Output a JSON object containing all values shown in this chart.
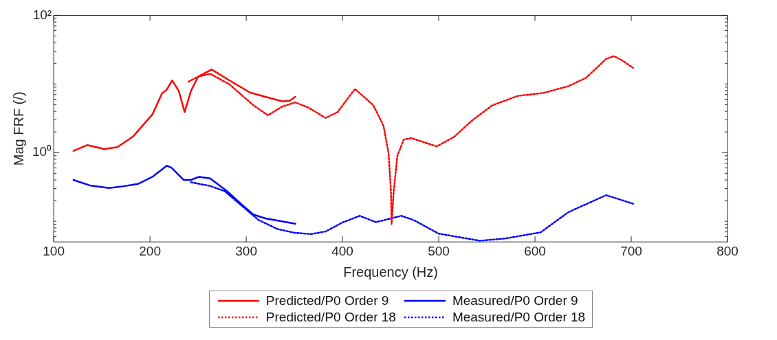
{
  "chart_data": {
    "type": "line",
    "xlabel": "Frequency (Hz)",
    "ylabel": "Mag FRF (/)",
    "log": "y",
    "grid": false,
    "legend": "bottom",
    "marker": "none",
    "xlim": [
      100,
      800
    ],
    "xticks": [
      100,
      200,
      300,
      400,
      500,
      600,
      700,
      800
    ],
    "ylim": [
      0.05,
      100
    ],
    "yticks": [
      {
        "value": 0.06,
        "label": null
      },
      {
        "value": 0.07,
        "label": null
      },
      {
        "value": 0.08,
        "label": null
      },
      {
        "value": 0.09,
        "label": null
      },
      {
        "value": 0.1,
        "label": null
      },
      {
        "value": 0.2,
        "label": null
      },
      {
        "value": 0.3,
        "label": null
      },
      {
        "value": 0.4,
        "label": null
      },
      {
        "value": 0.5,
        "label": null
      },
      {
        "value": 0.6,
        "label": null
      },
      {
        "value": 0.7,
        "label": null
      },
      {
        "value": 0.8,
        "label": null
      },
      {
        "value": 0.9,
        "label": null
      },
      {
        "value": 1,
        "label": "10⁰"
      },
      {
        "value": 2,
        "label": null
      },
      {
        "value": 3,
        "label": null
      },
      {
        "value": 4,
        "label": null
      },
      {
        "value": 5,
        "label": null
      },
      {
        "value": 6,
        "label": null
      },
      {
        "value": 7,
        "label": null
      },
      {
        "value": 8,
        "label": null
      },
      {
        "value": 9,
        "label": null
      },
      {
        "value": 10,
        "label": null
      },
      {
        "value": 20,
        "label": null
      },
      {
        "value": 30,
        "label": null
      },
      {
        "value": 40,
        "label": null
      },
      {
        "value": 50,
        "label": null
      },
      {
        "value": 60,
        "label": null
      },
      {
        "value": 70,
        "label": null
      },
      {
        "value": 80,
        "label": null
      },
      {
        "value": 90,
        "label": null
      },
      {
        "value": 100,
        "label": "10²"
      }
    ],
    "series": [
      {
        "name": "Predicted/P0 Order 9",
        "color": "#ff0000",
        "line_style": "solid",
        "x": [
          120.5,
          135,
          152.5,
          166,
          182.5,
          202.5,
          212.5,
          217.5,
          223,
          230,
          236,
          242.5,
          250,
          264,
          282.5,
          304,
          320,
          337.5,
          345,
          351
        ],
        "values": [
          1.06,
          1.29,
          1.13,
          1.2,
          1.72,
          3.6,
          7.3,
          8.3,
          11.3,
          7.9,
          3.9,
          7.9,
          12.8,
          16.3,
          11.3,
          7.5,
          6.5,
          5.6,
          5.7,
          6.5
        ]
      },
      {
        "name": "Measured/P0 Order 9",
        "color": "#0000ff",
        "line_style": "solid",
        "x": [
          120.5,
          137.5,
          157.5,
          172.5,
          187.5,
          202.5,
          217.5,
          222.5,
          235,
          242.5,
          251,
          262.5,
          280,
          295,
          307.5,
          320,
          351
        ],
        "values": [
          0.4,
          0.333,
          0.305,
          0.324,
          0.35,
          0.444,
          0.646,
          0.6,
          0.4,
          0.4,
          0.444,
          0.42,
          0.275,
          0.177,
          0.125,
          0.11,
          0.092
        ]
      },
      {
        "name": "Predicted/P0 Order 18",
        "color": "#ff0000",
        "line_style": "dotted",
        "x": [
          240,
          250,
          262.5,
          282.5,
          307.5,
          322.5,
          337.5,
          351,
          365,
          382.5,
          395,
          413,
          432,
          442.6,
          447.9,
          450.5,
          451,
          453,
          457,
          463.7,
          471.6,
          497.9,
          516,
          534.8,
          555.8,
          582,
          608.5,
          634.8,
          653,
          674,
          682,
          690,
          702
        ],
        "values": [
          10.8,
          12.8,
          14.1,
          9.9,
          4.9,
          3.5,
          4.7,
          5.4,
          4.5,
          3.2,
          3.9,
          8.5,
          4.9,
          2.46,
          0.98,
          0.25,
          0.091,
          0.25,
          0.9,
          1.55,
          1.63,
          1.23,
          1.7,
          2.95,
          4.9,
          6.7,
          7.4,
          9.3,
          12.3,
          23.3,
          25.5,
          22.3,
          17.2
        ]
      },
      {
        "name": "Measured/P0 Order 18",
        "color": "#0000ff",
        "line_style": "dotted",
        "x": [
          242.5,
          262.5,
          277.5,
          295,
          312.5,
          332.5,
          350,
          367.5,
          382.5,
          400,
          418,
          434.7,
          461,
          474,
          500,
          542.7,
          569,
          605.9,
          634.8,
          674,
          702
        ],
        "values": [
          0.37,
          0.327,
          0.275,
          0.17,
          0.105,
          0.077,
          0.068,
          0.065,
          0.071,
          0.096,
          0.12,
          0.097,
          0.12,
          0.104,
          0.066,
          0.052,
          0.056,
          0.069,
          0.136,
          0.24,
          0.18
        ]
      }
    ]
  }
}
